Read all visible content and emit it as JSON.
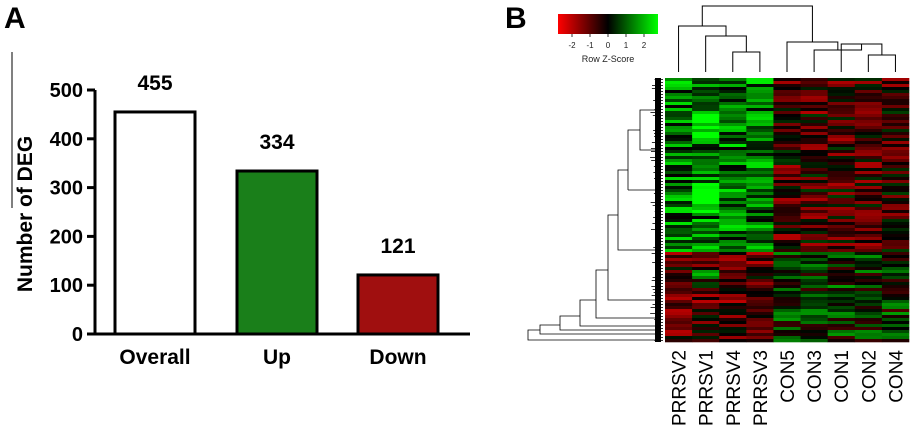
{
  "panels": {
    "a": "A",
    "b": "B"
  },
  "chart_data": [
    {
      "type": "bar",
      "categories": [
        "Overall",
        "Up",
        "Down"
      ],
      "values": [
        455,
        334,
        121
      ],
      "value_labels": [
        "455",
        "334",
        "121"
      ],
      "ylabel": "Number of DEG",
      "ylim": [
        0,
        500
      ],
      "yticks": [
        0,
        100,
        200,
        300,
        400,
        500
      ],
      "bar_colors": [
        "#ffffff",
        "#1a7f1a",
        "#a00f0f"
      ],
      "grid": false
    },
    {
      "type": "heatmap",
      "columns": [
        "PRRSV2",
        "PRRSV1",
        "PRRSV4",
        "PRRSV3",
        "CON5",
        "CON3",
        "CON1",
        "CON2",
        "CON4"
      ],
      "color_key": {
        "title": "Row Z-Score",
        "ticks": [
          "-2",
          "-1",
          "0",
          "1",
          "2"
        ],
        "low_color": "#ff0000",
        "mid_color": "#000000",
        "high_color": "#00ff00"
      },
      "row_dendrogram": true,
      "column_dendrogram": true
    }
  ]
}
